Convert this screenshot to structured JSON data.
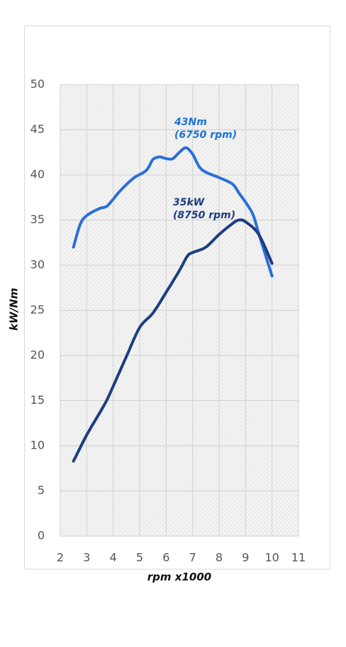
{
  "chart_data": {
    "type": "line",
    "x_label": "rpm x1000",
    "y_label": "kW/Nm",
    "xlim": [
      2,
      11
    ],
    "xticks": [
      2,
      3,
      4,
      5,
      6,
      7,
      8,
      9,
      10,
      11
    ],
    "ylim": [
      0,
      50
    ],
    "yticks": [
      0,
      5,
      10,
      15,
      20,
      25,
      30,
      35,
      40,
      45,
      50
    ],
    "grid": true,
    "series": [
      {
        "color": "#2b6fd8",
        "x": [
          2.5,
          2.75,
          3,
          3.5,
          3.75,
          4,
          4.25,
          4.75,
          5.25,
          5.5,
          5.75,
          6,
          6.25,
          6.5,
          6.75,
          7,
          7.25,
          7.5,
          8,
          8.5,
          8.75,
          9.25,
          9.5,
          10
        ],
        "values": [
          32,
          34.5,
          35.5,
          36.3,
          36.5,
          37.3,
          38.2,
          39.6,
          40.5,
          41.7,
          42,
          41.8,
          41.8,
          42.5,
          43,
          42.3,
          40.9,
          40.3,
          39.7,
          39,
          38,
          35.8,
          33.5,
          28.8
        ]
      },
      {
        "color": "#1c3d80",
        "x": [
          2.5,
          3,
          3.5,
          3.75,
          4,
          4.5,
          5,
          5.5,
          6,
          6.5,
          6.8,
          7,
          7.5,
          8,
          8.5,
          8.75,
          9,
          9.5,
          10
        ],
        "values": [
          8.3,
          11.2,
          13.7,
          15,
          16.6,
          19.9,
          23.1,
          24.7,
          27,
          29.4,
          31,
          31.4,
          32,
          33.4,
          34.6,
          35,
          34.8,
          33.4,
          30.2
        ]
      }
    ],
    "annotations": [
      {
        "text": [
          "43Nm",
          "(6750 rpm)"
        ],
        "color": "#1a74d6"
      },
      {
        "text": [
          "35kW",
          "(8750 rpm)"
        ],
        "color": "#1c3d80"
      }
    ]
  }
}
